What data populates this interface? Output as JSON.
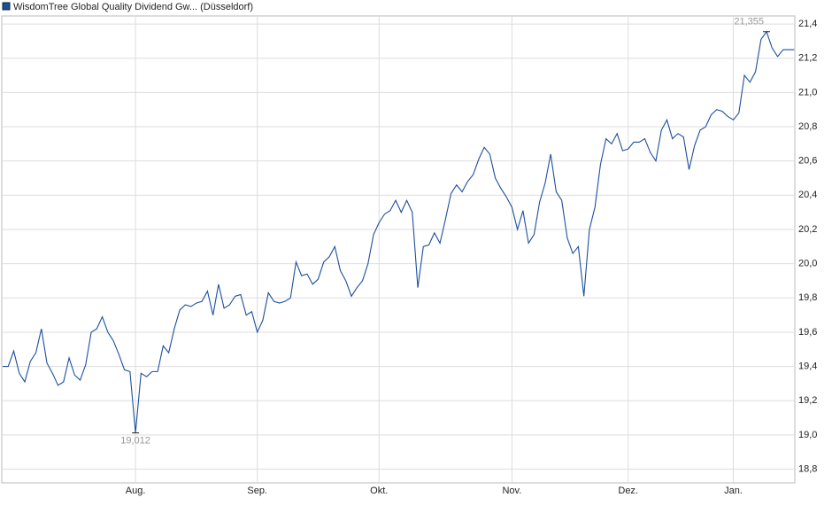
{
  "chart_data": {
    "type": "line",
    "series": [
      {
        "name": "WisdomTree Global Quality Dividend Gw... (Düsseldorf)",
        "color": "#1c4f9c",
        "values": [
          19.4,
          19.4,
          19.49,
          19.36,
          19.31,
          19.43,
          19.48,
          19.62,
          19.42,
          19.36,
          19.29,
          19.31,
          19.45,
          19.35,
          19.32,
          19.41,
          19.6,
          19.62,
          19.69,
          19.6,
          19.55,
          19.47,
          19.38,
          19.37,
          19.012,
          19.36,
          19.34,
          19.37,
          19.37,
          19.52,
          19.48,
          19.62,
          19.73,
          19.76,
          19.75,
          19.77,
          19.78,
          19.84,
          19.7,
          19.88,
          19.74,
          19.76,
          19.81,
          19.82,
          19.7,
          19.72,
          19.6,
          19.67,
          19.83,
          19.78,
          19.77,
          19.78,
          19.8,
          20.01,
          19.93,
          19.94,
          19.88,
          19.91,
          20.01,
          20.04,
          20.1,
          19.96,
          19.9,
          19.81,
          19.86,
          19.9,
          20.0,
          20.17,
          20.24,
          20.29,
          20.31,
          20.37,
          20.3,
          20.37,
          20.3,
          19.86,
          20.1,
          20.11,
          20.18,
          20.12,
          20.26,
          20.41,
          20.46,
          20.42,
          20.48,
          20.52,
          20.61,
          20.68,
          20.64,
          20.5,
          20.44,
          20.39,
          20.33,
          20.2,
          20.31,
          20.12,
          20.17,
          20.36,
          20.47,
          20.64,
          20.42,
          20.37,
          20.15,
          20.06,
          20.1,
          19.81,
          20.2,
          20.33,
          20.58,
          20.73,
          20.7,
          20.76,
          20.66,
          20.67,
          20.71,
          20.71,
          20.73,
          20.65,
          20.6,
          20.78,
          20.84,
          20.73,
          20.76,
          20.74,
          20.55,
          20.69,
          20.78,
          20.8,
          20.87,
          20.9,
          20.89,
          20.86,
          20.84,
          20.88,
          21.1,
          21.06,
          21.12,
          21.31,
          21.355,
          21.26,
          21.21,
          21.25,
          21.25,
          21.25
        ]
      }
    ],
    "categories": [
      null,
      null,
      null,
      null,
      null,
      null,
      null,
      null,
      null,
      null,
      null,
      null,
      null,
      null,
      null,
      null,
      null,
      null,
      null,
      null,
      null,
      null,
      null,
      null,
      "Aug.",
      null,
      null,
      null,
      null,
      null,
      null,
      null,
      null,
      null,
      null,
      null,
      null,
      null,
      null,
      null,
      null,
      null,
      null,
      null,
      null,
      null,
      "Sep.",
      null,
      null,
      null,
      null,
      null,
      null,
      null,
      null,
      null,
      null,
      null,
      null,
      null,
      null,
      null,
      null,
      null,
      null,
      null,
      null,
      null,
      "Okt.",
      null,
      null,
      null,
      null,
      null,
      null,
      null,
      null,
      null,
      null,
      null,
      null,
      null,
      null,
      null,
      null,
      null,
      null,
      null,
      null,
      null,
      null,
      null,
      "Nov.",
      null,
      null,
      null,
      null,
      null,
      null,
      null,
      null,
      null,
      null,
      null,
      null,
      null,
      null,
      null,
      null,
      null,
      null,
      null,
      null,
      "Dez.",
      null,
      null,
      null,
      null,
      null,
      null,
      null,
      null,
      null,
      null,
      null,
      null,
      null,
      null,
      null,
      null,
      null,
      null,
      "Jan.",
      null,
      null,
      null,
      null,
      null,
      null,
      null,
      null,
      null,
      null,
      null
    ],
    "annotations": [
      {
        "value": 21.355,
        "label": "21,355"
      },
      {
        "value": 19.012,
        "label": "19,012"
      }
    ],
    "ylim": [
      18.72,
      21.447
    ],
    "yticks": [
      {
        "value": 18.8,
        "label": "18,8"
      },
      {
        "value": 19.0,
        "label": "19,0"
      },
      {
        "value": 19.2,
        "label": "19,2"
      },
      {
        "value": 19.4,
        "label": "19,4"
      },
      {
        "value": 19.6,
        "label": "19,6"
      },
      {
        "value": 19.8,
        "label": "19,8"
      },
      {
        "value": 20.0,
        "label": "20,0"
      },
      {
        "value": 20.2,
        "label": "20,2"
      },
      {
        "value": 20.4,
        "label": "20,4"
      },
      {
        "value": 20.6,
        "label": "20,6"
      },
      {
        "value": 20.8,
        "label": "20,8"
      },
      {
        "value": 21.0,
        "label": "21,0"
      },
      {
        "value": 21.2,
        "label": "21,2"
      },
      {
        "value": 21.4,
        "label": "21,4"
      }
    ],
    "grid": true,
    "legend": "top-left"
  }
}
